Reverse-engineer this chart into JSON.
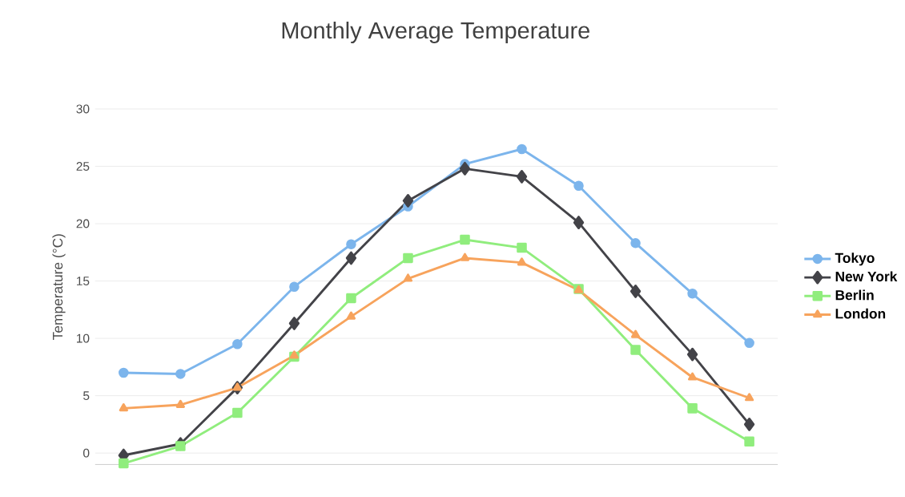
{
  "chart_data": {
    "type": "line",
    "title": "Monthly Average Temperature",
    "ylabel": "Temperature (°C)",
    "categories": [
      null,
      null,
      null,
      null,
      null,
      null,
      null,
      null,
      null,
      null,
      null,
      null
    ],
    "series": [
      {
        "name": "Tokyo",
        "color": "#7cb5ec",
        "marker": "circle",
        "values": [
          7.0,
          6.9,
          9.5,
          14.5,
          18.2,
          21.5,
          25.2,
          26.5,
          23.3,
          18.3,
          13.9,
          9.6
        ]
      },
      {
        "name": "New York",
        "color": "#434348",
        "marker": "diamond",
        "values": [
          -0.2,
          0.8,
          5.7,
          11.3,
          17.0,
          22.0,
          24.8,
          24.1,
          20.1,
          14.1,
          8.6,
          2.5
        ]
      },
      {
        "name": "Berlin",
        "color": "#90ed7d",
        "marker": "square",
        "values": [
          -0.9,
          0.6,
          3.5,
          8.4,
          13.5,
          17.0,
          18.6,
          17.9,
          14.3,
          9.0,
          3.9,
          1.0
        ]
      },
      {
        "name": "London",
        "color": "#f7a35c",
        "marker": "triangle",
        "values": [
          3.9,
          4.2,
          5.7,
          8.5,
          11.9,
          15.2,
          17.0,
          16.6,
          14.2,
          10.3,
          6.6,
          4.8
        ]
      }
    ],
    "ylim": [
      -1,
      30
    ],
    "yticks": [
      0,
      5,
      10,
      15,
      20,
      25,
      30
    ],
    "grid": "y",
    "legend": "right",
    "tick_labels": "y",
    "line_style": "solid"
  }
}
